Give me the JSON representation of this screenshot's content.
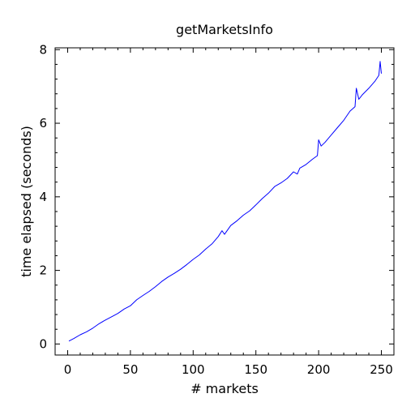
{
  "chart_data": {
    "type": "line",
    "title": "getMarketsInfo",
    "xlabel": "# markets",
    "ylabel": "time elapsed (seconds)",
    "xlim": [
      -10,
      260
    ],
    "ylim": [
      -0.3,
      8.05
    ],
    "xticks": [
      0,
      50,
      100,
      150,
      200,
      250
    ],
    "yticks": [
      0,
      2,
      4,
      6,
      8
    ],
    "xtick_labels": [
      "0",
      "50",
      "100",
      "150",
      "200",
      "250"
    ],
    "ytick_labels": [
      "0",
      "2",
      "4",
      "6",
      "8"
    ],
    "grid": false,
    "colors": {
      "line": "#0000ff",
      "axes": "#000000"
    },
    "series": [
      {
        "x": [
          1,
          5,
          10,
          15,
          20,
          25,
          30,
          35,
          40,
          45,
          50,
          55,
          60,
          65,
          70,
          75,
          80,
          85,
          90,
          95,
          100,
          105,
          110,
          115,
          120,
          123,
          125,
          130,
          135,
          140,
          145,
          150,
          155,
          160,
          165,
          170,
          175,
          180,
          183,
          185,
          190,
          195,
          199,
          200,
          202,
          205,
          210,
          215,
          220,
          225,
          229,
          230,
          232,
          235,
          240,
          245,
          248,
          249,
          250
        ],
        "y": [
          0.08,
          0.15,
          0.25,
          0.33,
          0.43,
          0.55,
          0.65,
          0.74,
          0.83,
          0.95,
          1.04,
          1.2,
          1.32,
          1.43,
          1.56,
          1.7,
          1.82,
          1.92,
          2.03,
          2.16,
          2.3,
          2.42,
          2.58,
          2.72,
          2.92,
          3.08,
          2.98,
          3.22,
          3.35,
          3.5,
          3.62,
          3.78,
          3.95,
          4.1,
          4.28,
          4.38,
          4.5,
          4.68,
          4.62,
          4.78,
          4.88,
          5.02,
          5.12,
          5.55,
          5.38,
          5.48,
          5.68,
          5.88,
          6.08,
          6.33,
          6.45,
          6.95,
          6.65,
          6.78,
          6.95,
          7.15,
          7.3,
          7.68,
          7.35
        ]
      }
    ]
  }
}
